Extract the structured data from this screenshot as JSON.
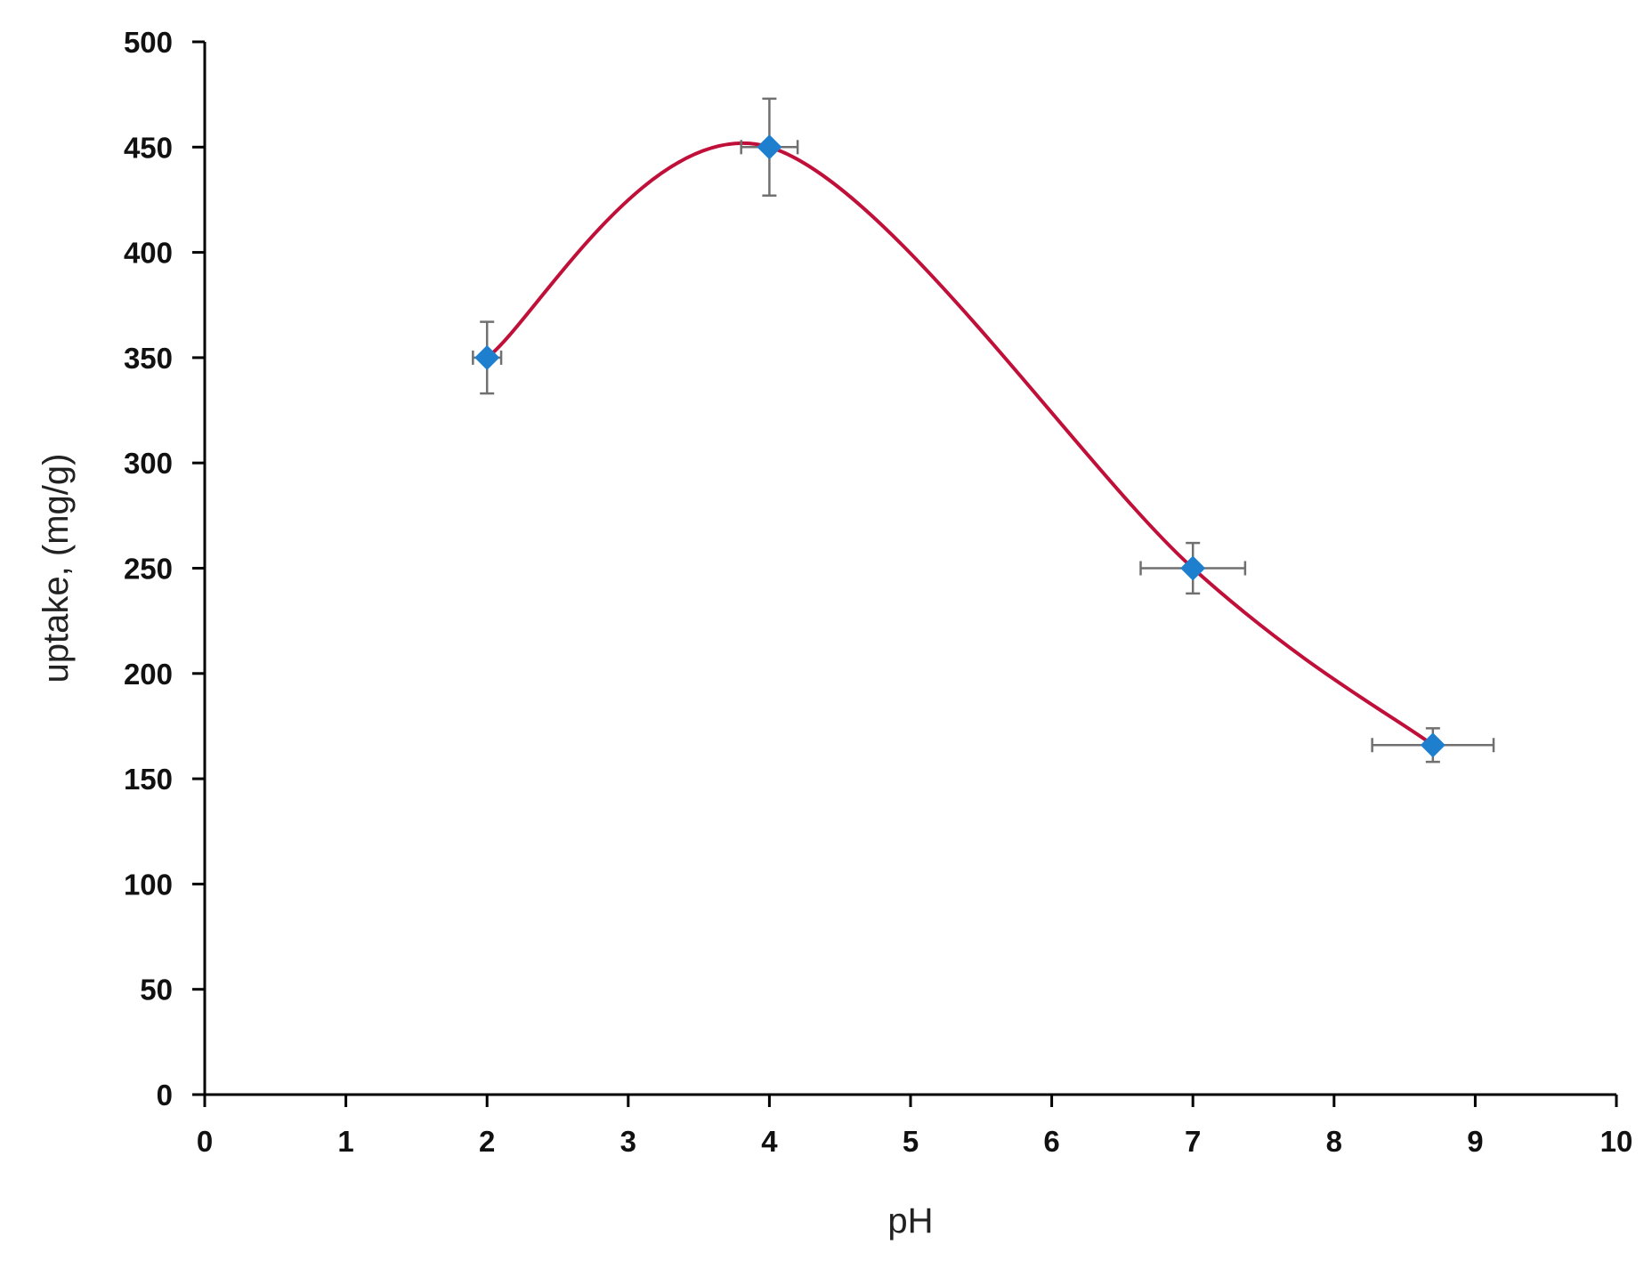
{
  "chart_data": {
    "type": "scatter",
    "title": "",
    "xlabel": "pH",
    "ylabel": "uptake, (mg/g)",
    "xlim": [
      0,
      10
    ],
    "ylim": [
      0,
      500
    ],
    "x_ticks": [
      0,
      1,
      2,
      3,
      4,
      5,
      6,
      7,
      8,
      9,
      10
    ],
    "y_ticks": [
      0,
      50,
      100,
      150,
      200,
      250,
      300,
      350,
      400,
      450,
      500
    ],
    "grid": false,
    "legend": "none",
    "series": [
      {
        "points": [
          {
            "x": 2,
            "y": 350,
            "x_err": 0.1,
            "y_err": 17
          },
          {
            "x": 4,
            "y": 450,
            "x_err": 0.2,
            "y_err": 23
          },
          {
            "x": 7,
            "y": 250,
            "x_err": 0.37,
            "y_err": 12
          },
          {
            "x": 8.7,
            "y": 166,
            "x_err": 0.43,
            "y_err": 8
          }
        ],
        "marker": "diamond",
        "marker_color": "#1f7fcf",
        "line": "smooth",
        "line_color": "#c0103a",
        "error_bar_color": "#707070"
      }
    ]
  }
}
